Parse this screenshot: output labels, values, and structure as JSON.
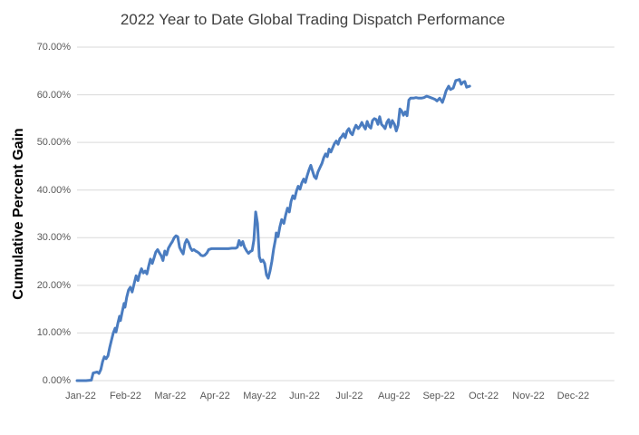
{
  "chart": {
    "title": "2022 Year to Date Global Trading Dispatch Performance",
    "y_axis_title": "Cumulative Percent Gain",
    "colors": {
      "line": "#4A7CC0",
      "gridline": "#D9D9D9",
      "title_text": "#3F3F3F",
      "tick_text": "#595959",
      "axis_title_text": "#000000"
    }
  },
  "chart_data": {
    "type": "line",
    "title": "2022 Year to Date Global Trading Dispatch Performance",
    "xlabel": "",
    "ylabel": "Cumulative Percent Gain",
    "ylim": [
      0,
      70
    ],
    "grid": "horizontal",
    "legend": "none",
    "y_ticks": [
      {
        "value": 70,
        "label": "70.00%"
      },
      {
        "value": 60,
        "label": "60.00%"
      },
      {
        "value": 50,
        "label": "50.00%"
      },
      {
        "value": 40,
        "label": "40.00%"
      },
      {
        "value": 30,
        "label": "30.00%"
      },
      {
        "value": 20,
        "label": "20.00%"
      },
      {
        "value": 10,
        "label": "10.00%"
      },
      {
        "value": 0,
        "label": "0.00%"
      }
    ],
    "x_tick_labels": [
      "Jan-22",
      "Feb-22",
      "Mar-22",
      "Apr-22",
      "May-22",
      "Jun-22",
      "Jul-22",
      "Aug-22",
      "Sep-22",
      "Oct-22",
      "Nov-22",
      "Dec-22"
    ],
    "series": [
      {
        "name": "Cumulative Percent Gain",
        "x_unit": "months_since_2022-01-01",
        "y_unit": "percent",
        "points": [
          [
            0.0,
            0.0
          ],
          [
            0.2,
            0.0
          ],
          [
            0.32,
            0.1
          ],
          [
            0.36,
            1.6
          ],
          [
            0.45,
            1.8
          ],
          [
            0.49,
            1.5
          ],
          [
            0.53,
            2.3
          ],
          [
            0.57,
            4.0
          ],
          [
            0.61,
            5.0
          ],
          [
            0.65,
            4.6
          ],
          [
            0.69,
            5.2
          ],
          [
            0.73,
            7.0
          ],
          [
            0.77,
            8.5
          ],
          [
            0.81,
            10.0
          ],
          [
            0.85,
            11.0
          ],
          [
            0.87,
            10.2
          ],
          [
            0.91,
            12.0
          ],
          [
            0.95,
            13.5
          ],
          [
            0.97,
            12.6
          ],
          [
            1.01,
            14.5
          ],
          [
            1.05,
            16.2
          ],
          [
            1.07,
            15.4
          ],
          [
            1.11,
            17.5
          ],
          [
            1.15,
            19.0
          ],
          [
            1.19,
            19.6
          ],
          [
            1.23,
            18.6
          ],
          [
            1.28,
            20.5
          ],
          [
            1.32,
            22.0
          ],
          [
            1.36,
            21.0
          ],
          [
            1.4,
            22.5
          ],
          [
            1.44,
            23.5
          ],
          [
            1.48,
            22.6
          ],
          [
            1.52,
            23.0
          ],
          [
            1.56,
            22.4
          ],
          [
            1.6,
            24.0
          ],
          [
            1.64,
            25.5
          ],
          [
            1.68,
            24.6
          ],
          [
            1.72,
            25.8
          ],
          [
            1.76,
            27.0
          ],
          [
            1.8,
            27.5
          ],
          [
            1.84,
            26.8
          ],
          [
            1.88,
            26.2
          ],
          [
            1.92,
            25.2
          ],
          [
            1.96,
            27.2
          ],
          [
            2.0,
            26.4
          ],
          [
            2.04,
            27.8
          ],
          [
            2.09,
            28.6
          ],
          [
            2.13,
            29.2
          ],
          [
            2.17,
            30.0
          ],
          [
            2.21,
            30.4
          ],
          [
            2.25,
            30.2
          ],
          [
            2.29,
            28.0
          ],
          [
            2.33,
            27.2
          ],
          [
            2.37,
            26.6
          ],
          [
            2.41,
            28.8
          ],
          [
            2.45,
            29.6
          ],
          [
            2.49,
            29.0
          ],
          [
            2.53,
            27.9
          ],
          [
            2.57,
            27.3
          ],
          [
            2.61,
            27.5
          ],
          [
            2.65,
            27.2
          ],
          [
            2.69,
            27.0
          ],
          [
            2.73,
            26.7
          ],
          [
            2.77,
            26.3
          ],
          [
            2.81,
            26.2
          ],
          [
            2.85,
            26.3
          ],
          [
            2.9,
            26.8
          ],
          [
            2.94,
            27.5
          ],
          [
            3.0,
            27.7
          ],
          [
            3.06,
            27.7
          ],
          [
            3.14,
            27.7
          ],
          [
            3.22,
            27.7
          ],
          [
            3.3,
            27.7
          ],
          [
            3.38,
            27.7
          ],
          [
            3.46,
            27.8
          ],
          [
            3.54,
            27.8
          ],
          [
            3.58,
            28.0
          ],
          [
            3.62,
            29.4
          ],
          [
            3.66,
            28.4
          ],
          [
            3.7,
            29.2
          ],
          [
            3.74,
            28.0
          ],
          [
            3.79,
            27.2
          ],
          [
            3.83,
            26.7
          ],
          [
            3.87,
            27.1
          ],
          [
            3.91,
            27.3
          ],
          [
            3.95,
            29.5
          ],
          [
            3.99,
            35.4
          ],
          [
            4.03,
            33.0
          ],
          [
            4.07,
            26.0
          ],
          [
            4.11,
            25.0
          ],
          [
            4.15,
            25.3
          ],
          [
            4.19,
            24.6
          ],
          [
            4.23,
            22.2
          ],
          [
            4.27,
            21.5
          ],
          [
            4.31,
            23.0
          ],
          [
            4.35,
            25.0
          ],
          [
            4.39,
            27.6
          ],
          [
            4.43,
            29.5
          ],
          [
            4.45,
            31.0
          ],
          [
            4.49,
            30.2
          ],
          [
            4.53,
            32.3
          ],
          [
            4.57,
            33.8
          ],
          [
            4.62,
            33.0
          ],
          [
            4.66,
            34.8
          ],
          [
            4.7,
            36.2
          ],
          [
            4.74,
            35.4
          ],
          [
            4.78,
            37.6
          ],
          [
            4.82,
            38.8
          ],
          [
            4.86,
            38.2
          ],
          [
            4.9,
            39.8
          ],
          [
            4.94,
            40.8
          ],
          [
            4.98,
            40.2
          ],
          [
            5.02,
            41.5
          ],
          [
            5.06,
            42.3
          ],
          [
            5.1,
            41.6
          ],
          [
            5.14,
            43.0
          ],
          [
            5.18,
            44.2
          ],
          [
            5.22,
            45.2
          ],
          [
            5.26,
            44.0
          ],
          [
            5.3,
            42.8
          ],
          [
            5.34,
            42.4
          ],
          [
            5.38,
            43.8
          ],
          [
            5.43,
            44.8
          ],
          [
            5.47,
            45.6
          ],
          [
            5.51,
            46.8
          ],
          [
            5.55,
            47.6
          ],
          [
            5.59,
            47.0
          ],
          [
            5.63,
            48.6
          ],
          [
            5.67,
            48.0
          ],
          [
            5.71,
            48.9
          ],
          [
            5.75,
            49.8
          ],
          [
            5.79,
            50.3
          ],
          [
            5.83,
            49.6
          ],
          [
            5.87,
            50.8
          ],
          [
            5.91,
            51.2
          ],
          [
            5.95,
            51.8
          ],
          [
            5.99,
            51.0
          ],
          [
            6.03,
            52.4
          ],
          [
            6.07,
            52.9
          ],
          [
            6.11,
            52.0
          ],
          [
            6.15,
            51.6
          ],
          [
            6.19,
            52.8
          ],
          [
            6.23,
            53.6
          ],
          [
            6.28,
            52.9
          ],
          [
            6.32,
            53.4
          ],
          [
            6.36,
            54.2
          ],
          [
            6.4,
            53.4
          ],
          [
            6.44,
            52.8
          ],
          [
            6.48,
            54.4
          ],
          [
            6.52,
            53.4
          ],
          [
            6.56,
            53.0
          ],
          [
            6.6,
            54.6
          ],
          [
            6.64,
            55.0
          ],
          [
            6.68,
            54.8
          ],
          [
            6.72,
            53.8
          ],
          [
            6.76,
            55.4
          ],
          [
            6.8,
            53.8
          ],
          [
            6.84,
            53.4
          ],
          [
            6.88,
            52.9
          ],
          [
            6.92,
            54.2
          ],
          [
            6.96,
            54.8
          ],
          [
            7.0,
            53.2
          ],
          [
            7.04,
            54.6
          ],
          [
            7.09,
            53.8
          ],
          [
            7.13,
            52.4
          ],
          [
            7.17,
            53.6
          ],
          [
            7.21,
            57.0
          ],
          [
            7.25,
            56.6
          ],
          [
            7.29,
            55.7
          ],
          [
            7.33,
            56.4
          ],
          [
            7.37,
            55.6
          ],
          [
            7.41,
            58.9
          ],
          [
            7.45,
            59.3
          ],
          [
            7.51,
            59.3
          ],
          [
            7.57,
            59.4
          ],
          [
            7.63,
            59.3
          ],
          [
            7.69,
            59.3
          ],
          [
            7.75,
            59.4
          ],
          [
            7.81,
            59.7
          ],
          [
            7.87,
            59.5
          ],
          [
            7.93,
            59.3
          ],
          [
            8.0,
            59.0
          ],
          [
            8.04,
            58.7
          ],
          [
            8.1,
            59.3
          ],
          [
            8.16,
            58.4
          ],
          [
            8.2,
            59.5
          ],
          [
            8.24,
            60.8
          ],
          [
            8.3,
            61.8
          ],
          [
            8.34,
            61.1
          ],
          [
            8.4,
            61.4
          ],
          [
            8.46,
            63.0
          ],
          [
            8.5,
            63.1
          ],
          [
            8.54,
            63.2
          ],
          [
            8.58,
            62.2
          ],
          [
            8.62,
            62.6
          ],
          [
            8.66,
            62.8
          ],
          [
            8.7,
            61.6
          ],
          [
            8.77,
            61.8
          ]
        ]
      }
    ]
  }
}
